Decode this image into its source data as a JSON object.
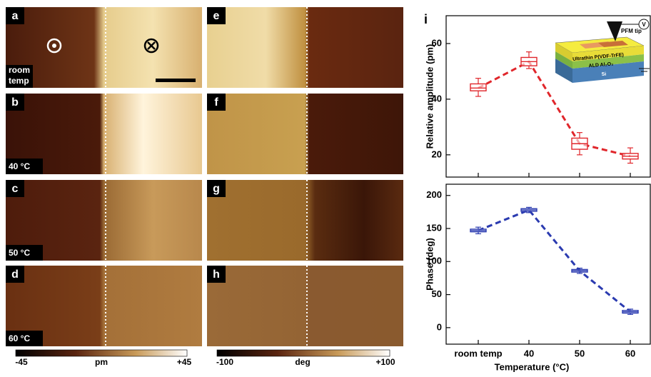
{
  "panels": [
    {
      "letter": "a",
      "condition": [
        "room",
        "temp"
      ]
    },
    {
      "letter": "b",
      "condition": "40 °C"
    },
    {
      "letter": "c",
      "condition": "50 °C"
    },
    {
      "letter": "d",
      "condition": "60 °C"
    },
    {
      "letter": "e"
    },
    {
      "letter": "f"
    },
    {
      "letter": "g"
    },
    {
      "letter": "h"
    }
  ],
  "colorbars": [
    [
      "-45",
      "pm",
      "+45"
    ],
    [
      "-100",
      "deg",
      "+100"
    ]
  ],
  "inset": {
    "tip": "PFM tip",
    "layer1": "Ultrathin P(VDF-TrFE)",
    "layer2": "ALD Al₂O₃",
    "layer3": "Si",
    "source": "V"
  },
  "chart_data": [
    {
      "type": "box",
      "label": "i",
      "ylabel": "Relative amplitude (pm)",
      "color": "#e0262b",
      "categories": [
        "room temp",
        "40",
        "50",
        "60"
      ],
      "boxes": [
        [
          41,
          43,
          44,
          45.5,
          47.5
        ],
        [
          51,
          52,
          53.5,
          55,
          57
        ],
        [
          20,
          22,
          24,
          26,
          28
        ],
        [
          17,
          18.5,
          19.5,
          20.5,
          22.5
        ]
      ],
      "ylim": [
        12,
        70
      ],
      "yticks": [
        20,
        40,
        60
      ]
    },
    {
      "type": "box",
      "ylabel": "Phase (deg)",
      "xlabel": "Temperature (°C)",
      "color": "#2b3bb0",
      "categories": [
        "room temp",
        "40",
        "50",
        "60"
      ],
      "boxes": [
        [
          142,
          145,
          147,
          149,
          152
        ],
        [
          174,
          176,
          178,
          180,
          182
        ],
        [
          82,
          84,
          86,
          88,
          90
        ],
        [
          20,
          22,
          24,
          26,
          28
        ]
      ],
      "ylim": [
        -25,
        217
      ],
      "yticks": [
        0,
        50,
        100,
        150,
        200
      ]
    }
  ]
}
